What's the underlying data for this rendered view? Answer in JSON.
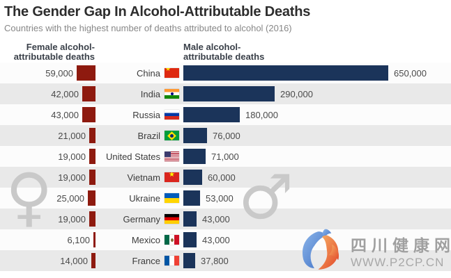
{
  "header": {
    "title": "The Gender Gap In Alcohol-Attributable Deaths",
    "subtitle": "Countries with the highest number of deaths attributed to alcohol (2016)",
    "female_col_line1": "Female alcohol-",
    "female_col_line2": "attributable deaths",
    "male_col_line1": "Male alcohol-",
    "male_col_line2": "attributable deaths"
  },
  "chart_data": {
    "type": "bar",
    "orientation": "horizontal",
    "title": "The Gender Gap In Alcohol-Attributable Deaths",
    "subtitle": "Countries with the highest number of deaths attributed to alcohol (2016)",
    "categories": [
      "China",
      "India",
      "Russia",
      "Brazil",
      "United States",
      "Vietnam",
      "Ukraine",
      "Germany",
      "Mexico",
      "France"
    ],
    "series": [
      {
        "name": "Female alcohol-attributable deaths",
        "color": "#8e1a0f",
        "values": [
          59000,
          42000,
          43000,
          21000,
          19000,
          19000,
          25000,
          19000,
          6100,
          14000
        ]
      },
      {
        "name": "Male alcohol-attributable deaths",
        "color": "#1b345a",
        "values": [
          650000,
          290000,
          180000,
          76000,
          71000,
          60000,
          53000,
          43000,
          43000,
          37800
        ]
      }
    ],
    "xlim": [
      0,
      650000
    ],
    "value_labels_visible": true,
    "grid": false,
    "legend_position": "column-headers",
    "striped_rows": true
  },
  "rows": [
    {
      "country": "China",
      "flag": "cn",
      "female": 59000,
      "female_label": "59,000",
      "male": 650000,
      "male_label": "650,000"
    },
    {
      "country": "India",
      "flag": "in",
      "female": 42000,
      "female_label": "42,000",
      "male": 290000,
      "male_label": "290,000"
    },
    {
      "country": "Russia",
      "flag": "ru",
      "female": 43000,
      "female_label": "43,000",
      "male": 180000,
      "male_label": "180,000"
    },
    {
      "country": "Brazil",
      "flag": "br",
      "female": 21000,
      "female_label": "21,000",
      "male": 76000,
      "male_label": "76,000"
    },
    {
      "country": "United States",
      "flag": "us",
      "female": 19000,
      "female_label": "19,000",
      "male": 71000,
      "male_label": "71,000"
    },
    {
      "country": "Vietnam",
      "flag": "vn",
      "female": 19000,
      "female_label": "19,000",
      "male": 60000,
      "male_label": "60,000"
    },
    {
      "country": "Ukraine",
      "flag": "ua",
      "female": 25000,
      "female_label": "25,000",
      "male": 53000,
      "male_label": "53,000"
    },
    {
      "country": "Germany",
      "flag": "de",
      "female": 19000,
      "female_label": "19,000",
      "male": 43000,
      "male_label": "43,000"
    },
    {
      "country": "Mexico",
      "flag": "mx",
      "female": 6100,
      "female_label": "6,100",
      "male": 43000,
      "male_label": "43,000"
    },
    {
      "country": "France",
      "flag": "fr",
      "female": 14000,
      "female_label": "14,000",
      "male": 37800,
      "male_label": "37,800"
    }
  ],
  "symbols": {
    "female": "♀",
    "male": "♂"
  },
  "watermark": {
    "site_name": "四川健康网",
    "site_url": "WWW.P2CP.CN"
  },
  "colors": {
    "female_bar": "#8e1a0f",
    "male_bar": "#1b345a",
    "row_stripe": "#e9e9e9",
    "symbol_gray": "#c9c9c9"
  }
}
